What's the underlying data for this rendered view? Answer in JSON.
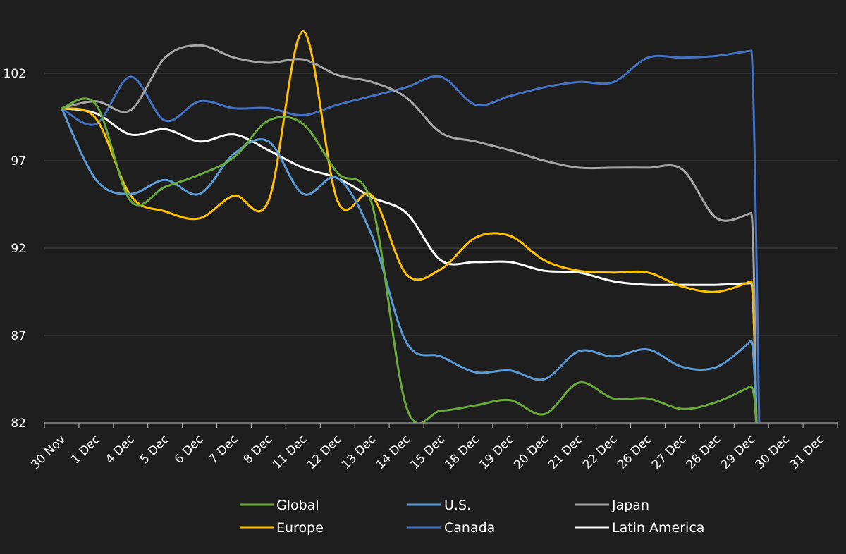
{
  "chart_data": {
    "type": "line",
    "title": "",
    "xlabel": "",
    "ylabel": "",
    "ylim": [
      82,
      104.5
    ],
    "yticks": [
      82,
      87,
      92,
      97,
      102
    ],
    "categories": [
      "30 Nov",
      "1 Dec",
      "4 Dec",
      "5 Dec",
      "6 Dec",
      "7 Dec",
      "8 Dec",
      "11 Dec",
      "12 Dec",
      "13 Dec",
      "14 Dec",
      "15 Dec",
      "18 Dec",
      "19 Dec",
      "20 Dec",
      "21 Dec",
      "22 Dec",
      "26 Dec",
      "27 Dec",
      "28 Dec",
      "29 Dec",
      "30 Dec",
      "31 Dec"
    ],
    "grid": true,
    "legend_position": "bottom",
    "series": [
      {
        "name": "Global",
        "color": "#6aaa3a",
        "values": [
          100,
          100.2,
          94.7,
          95.5,
          96.2,
          97.2,
          99.3,
          99.1,
          96.3,
          94.5,
          82.9,
          82.7,
          83.0,
          83.3,
          82.5,
          84.3,
          83.4,
          83.4,
          82.8,
          83.2,
          84.1,
          null,
          null
        ]
      },
      {
        "name": "U.S.",
        "color": "#5b9bd5",
        "values": [
          100,
          95.9,
          95.1,
          95.9,
          95.1,
          97.4,
          98.1,
          95.1,
          96.0,
          92.7,
          86.6,
          85.8,
          84.9,
          85.0,
          84.5,
          86.1,
          85.8,
          86.2,
          85.2,
          85.2,
          86.7,
          null,
          null
        ]
      },
      {
        "name": "Japan",
        "color": "#a5a5a5",
        "values": [
          100,
          100.4,
          99.9,
          102.9,
          103.6,
          102.9,
          102.6,
          102.8,
          101.9,
          101.5,
          100.6,
          98.6,
          98.1,
          97.6,
          97.0,
          96.6,
          96.6,
          96.6,
          96.5,
          93.7,
          94.0,
          null,
          null
        ]
      },
      {
        "name": "Europe",
        "color": "#ffc000",
        "values": [
          100,
          99.4,
          95.0,
          94.1,
          93.7,
          95.0,
          94.7,
          104.4,
          94.7,
          95.0,
          90.5,
          90.8,
          92.6,
          92.7,
          91.3,
          90.7,
          90.6,
          90.6,
          89.8,
          89.5,
          90.1,
          null,
          null
        ]
      },
      {
        "name": "Canada",
        "color": "#4472c4",
        "values": [
          100,
          99.1,
          101.8,
          99.3,
          100.4,
          100.0,
          100.0,
          99.6,
          100.2,
          100.7,
          101.2,
          101.8,
          100.2,
          100.7,
          101.2,
          101.5,
          101.5,
          102.9,
          102.9,
          103.0,
          103.3,
          null,
          null
        ]
      },
      {
        "name": "Latin America",
        "color": "#ffffff",
        "values": [
          100,
          99.7,
          98.5,
          98.8,
          98.1,
          98.5,
          97.6,
          96.6,
          96.0,
          94.9,
          94.0,
          91.3,
          91.2,
          91.2,
          90.7,
          90.6,
          90.1,
          89.9,
          89.9,
          89.9,
          90.0,
          null,
          null
        ]
      }
    ]
  }
}
